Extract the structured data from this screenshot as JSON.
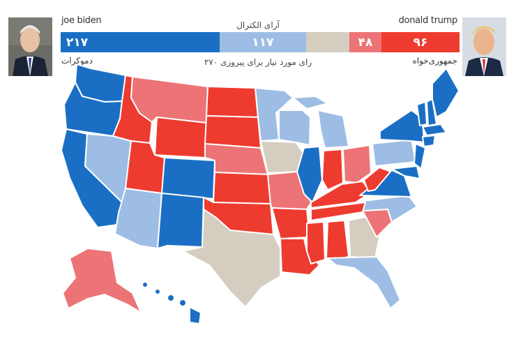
{
  "header": {
    "electoral_votes_label": "آرای الکترال",
    "win_threshold_label": "۲۷۰ رای مورد نیاز برای پیروزی"
  },
  "candidates": {
    "dem": {
      "name": "joe biden",
      "party": "دموکرات"
    },
    "rep": {
      "name": "donald trump",
      "party": "جمهوری‌خواه"
    }
  },
  "tally": {
    "dem": "۲۱۷",
    "lean_dem": "۱۱۷",
    "tossup": "",
    "lean_rep": "۴۸",
    "rep": "۹۶"
  },
  "colors": {
    "dem": "#1a6fc4",
    "lean_dem": "#9dbde4",
    "tossup": "#d4cdc0",
    "lean_rep": "#ec7476",
    "rep": "#ee3b2f"
  }
}
